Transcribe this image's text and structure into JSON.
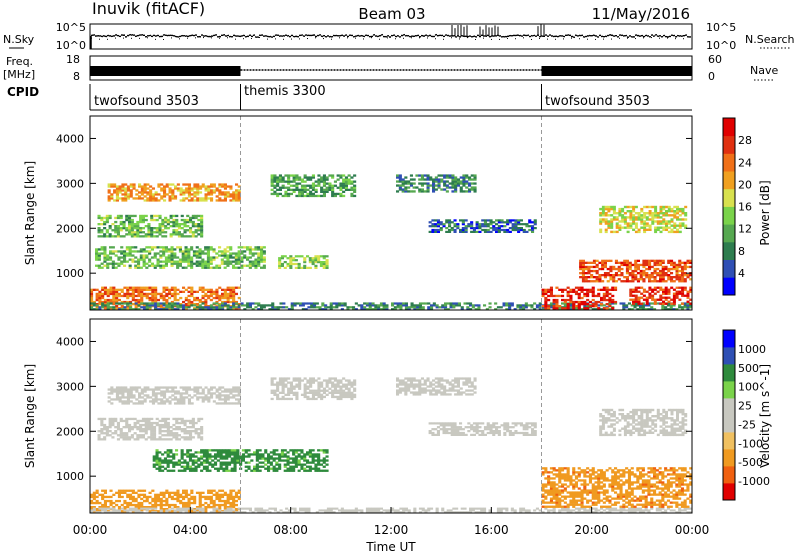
{
  "header": {
    "station": "Inuvik (fitACF)",
    "beam": "Beam 03",
    "date": "11/May/2016"
  },
  "top_panel": {
    "left_label": "N.Sky",
    "left_ticks": [
      "10^5",
      "10^0"
    ],
    "right_ticks": [
      "10^5",
      "10^0"
    ],
    "right_label": "N.Search"
  },
  "freq_panel": {
    "left_label_1": "Freq.",
    "left_label_2": "[MHz]",
    "left_ticks": [
      "18",
      "8"
    ],
    "right_ticks": [
      "60",
      "0"
    ],
    "right_label": "Nave"
  },
  "cpid": {
    "label": "CPID",
    "segments": [
      {
        "name": "twofsound 3503",
        "start": "00:00"
      },
      {
        "name": "themis 3300",
        "start": "06:00"
      },
      {
        "name": "twofsound 3503",
        "start": "18:00"
      }
    ]
  },
  "colors": {
    "power": [
      "#0000ff",
      "#2f4fb4",
      "#2e7d4f",
      "#56a850",
      "#7ad34a",
      "#d8e14e",
      "#f0a020",
      "#f07018",
      "#e03010",
      "#e00000"
    ],
    "velocity": [
      "#e00000",
      "#f06010",
      "#f09a20",
      "#f0c060",
      "#c8c8c0",
      "#c8c8c0",
      "#7ad34a",
      "#2e8a3c",
      "#2e4fb4",
      "#0000ff"
    ]
  },
  "chart_data": [
    {
      "type": "heatmap",
      "title": "Power",
      "ylabel": "Slant Range [km]",
      "xlim": [
        "00:00",
        "24:00"
      ],
      "ylim": [
        180,
        4500
      ],
      "yticks": [
        "1000",
        "2000",
        "3000",
        "4000"
      ],
      "colorbar_label": "Power [dB]",
      "colorbar_ticks": [
        "4",
        "8",
        "12",
        "16",
        "20",
        "24",
        "28"
      ],
      "colorbar_range": [
        0,
        30
      ],
      "echo_bands": [
        {
          "t0": 0.7,
          "t1": 6.0,
          "r0": 2600,
          "r1": 3000,
          "level": 20
        },
        {
          "t0": 0.3,
          "t1": 4.5,
          "r0": 1800,
          "r1": 2300,
          "level": 12
        },
        {
          "t0": 0.2,
          "t1": 7.0,
          "r0": 1100,
          "r1": 1600,
          "level": 12
        },
        {
          "t0": 0.0,
          "t1": 6.0,
          "r0": 200,
          "r1": 700,
          "level": 22
        },
        {
          "t0": 7.2,
          "t1": 10.6,
          "r0": 2700,
          "r1": 3200,
          "level": 10
        },
        {
          "t0": 7.5,
          "t1": 9.5,
          "r0": 1100,
          "r1": 1400,
          "level": 14
        },
        {
          "t0": 12.2,
          "t1": 15.4,
          "r0": 2800,
          "r1": 3200,
          "level": 8
        },
        {
          "t0": 13.5,
          "t1": 17.8,
          "r0": 1900,
          "r1": 2200,
          "level": 6
        },
        {
          "t0": 0.0,
          "t1": 24.0,
          "r0": 180,
          "r1": 350,
          "level": 8
        },
        {
          "t0": 18.0,
          "t1": 21.0,
          "r0": 200,
          "r1": 700,
          "level": 27
        },
        {
          "t0": 19.5,
          "t1": 24.0,
          "r0": 800,
          "r1": 1300,
          "level": 24
        },
        {
          "t0": 20.3,
          "t1": 23.8,
          "r0": 1900,
          "r1": 2500,
          "level": 16
        },
        {
          "t0": 21.5,
          "t1": 24.0,
          "r0": 300,
          "r1": 700,
          "level": 26
        }
      ]
    },
    {
      "type": "heatmap",
      "title": "Velocity",
      "ylabel": "Slant Range [km]",
      "xlabel": "Time UT",
      "xlim": [
        "00:00",
        "24:00"
      ],
      "ylim": [
        180,
        4500
      ],
      "yticks": [
        "1000",
        "2000",
        "3000",
        "4000"
      ],
      "xticks": [
        "00:00",
        "04:00",
        "08:00",
        "12:00",
        "16:00",
        "20:00",
        "00:00"
      ],
      "colorbar_label": "Velocity [m s^-1]",
      "colorbar_ticks": [
        "1000",
        "500",
        "100",
        "25",
        "-25",
        "-100",
        "-500",
        "-1000"
      ],
      "echo_bands": [
        {
          "t0": 0.7,
          "t1": 6.0,
          "r0": 2600,
          "r1": 3000,
          "level": 0
        },
        {
          "t0": 0.3,
          "t1": 4.5,
          "r0": 1800,
          "r1": 2300,
          "level": 0
        },
        {
          "t0": 2.5,
          "t1": 9.5,
          "r0": 1100,
          "r1": 1600,
          "level": 200
        },
        {
          "t0": 0.0,
          "t1": 6.0,
          "r0": 200,
          "r1": 700,
          "level": -300
        },
        {
          "t0": 7.2,
          "t1": 10.6,
          "r0": 2700,
          "r1": 3200,
          "level": 0
        },
        {
          "t0": 12.2,
          "t1": 15.4,
          "r0": 2800,
          "r1": 3200,
          "level": 0
        },
        {
          "t0": 13.5,
          "t1": 17.8,
          "r0": 1900,
          "r1": 2200,
          "level": 0
        },
        {
          "t0": 0.0,
          "t1": 24.0,
          "r0": 180,
          "r1": 300,
          "level": 0
        },
        {
          "t0": 18.0,
          "t1": 24.0,
          "r0": 300,
          "r1": 1200,
          "level": -400
        },
        {
          "t0": 20.3,
          "t1": 23.8,
          "r0": 1900,
          "r1": 2500,
          "level": 0
        }
      ]
    }
  ]
}
